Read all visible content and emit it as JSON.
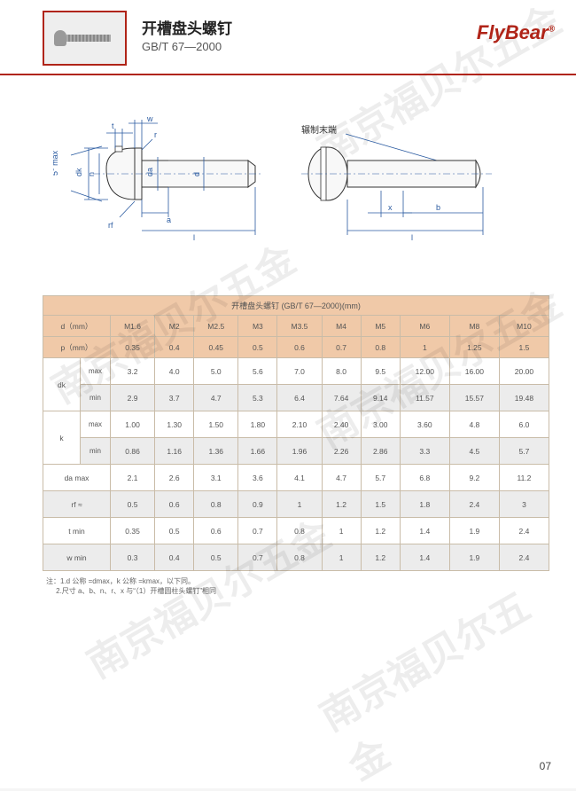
{
  "header": {
    "title_cn": "开槽盘头螺钉",
    "title_std": "GB/T 67—2000",
    "logo": "FlyBear",
    "logo_mark": "®"
  },
  "diagram": {
    "end_label": "辗制末端",
    "dims": {
      "t": "t",
      "w": "w",
      "r": "r",
      "dk": "dk",
      "n": "n",
      "da": "da",
      "d": "d",
      "a": "a",
      "l": "l",
      "rf": "rf",
      "angle": "5° max",
      "x": "x",
      "b": "b"
    }
  },
  "table": {
    "title": "开槽盘头螺钉 (GB/T 67—2000)(mm)",
    "header_d": "d（mm）",
    "header_p": "p（mm）",
    "sizes": [
      "M1.6",
      "M2",
      "M2.5",
      "M3",
      "M3.5",
      "M4",
      "M5",
      "M6",
      "M8",
      "M10"
    ],
    "p": [
      "0.35",
      "0.4",
      "0.45",
      "0.5",
      "0.6",
      "0.7",
      "0.8",
      "1",
      "1.25",
      "1.5"
    ],
    "rows": [
      {
        "label": "dk",
        "sub": "max",
        "vals": [
          "3.2",
          "4.0",
          "5.0",
          "5.6",
          "7.0",
          "8.0",
          "9.5",
          "12.00",
          "16.00",
          "20.00"
        ]
      },
      {
        "label": "",
        "sub": "min",
        "vals": [
          "2.9",
          "3.7",
          "4.7",
          "5.3",
          "6.4",
          "7.64",
          "9.14",
          "11.57",
          "15.57",
          "19.48"
        ]
      },
      {
        "label": "k",
        "sub": "max",
        "vals": [
          "1.00",
          "1.30",
          "1.50",
          "1.80",
          "2.10",
          "2.40",
          "3.00",
          "3.60",
          "4.8",
          "6.0"
        ]
      },
      {
        "label": "",
        "sub": "min",
        "vals": [
          "0.86",
          "1.16",
          "1.36",
          "1.66",
          "1.96",
          "2.26",
          "2.86",
          "3.3",
          "4.5",
          "5.7"
        ]
      },
      {
        "label": "da max",
        "sub": "",
        "vals": [
          "2.1",
          "2.6",
          "3.1",
          "3.6",
          "4.1",
          "4.7",
          "5.7",
          "6.8",
          "9.2",
          "11.2"
        ]
      },
      {
        "label": "rf ≈",
        "sub": "",
        "vals": [
          "0.5",
          "0.6",
          "0.8",
          "0.9",
          "1",
          "1.2",
          "1.5",
          "1.8",
          "2.4",
          "3"
        ]
      },
      {
        "label": "t min",
        "sub": "",
        "vals": [
          "0.35",
          "0.5",
          "0.6",
          "0.7",
          "0.8",
          "1",
          "1.2",
          "1.4",
          "1.9",
          "2.4"
        ]
      },
      {
        "label": "w min",
        "sub": "",
        "vals": [
          "0.3",
          "0.4",
          "0.5",
          "0.7",
          "0.8",
          "1",
          "1.2",
          "1.4",
          "1.9",
          "2.4"
        ]
      }
    ]
  },
  "notes": {
    "prefix": "注：",
    "line1": "1.d 公称 =dmax，k 公称 =kmax，以下同。",
    "line2": "2.尺寸 a、b、n、r、x 与“（1）开槽圆柱头螺钉”相同"
  },
  "pagenum": "07",
  "watermark": "南京福贝尔五金"
}
